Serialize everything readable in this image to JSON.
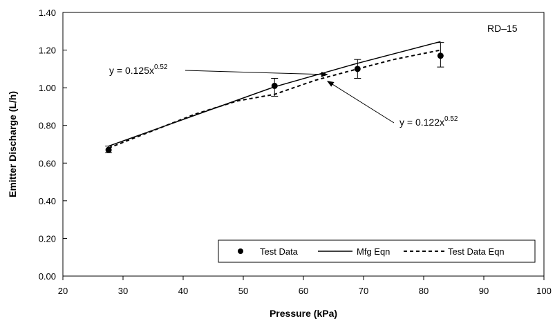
{
  "chart_data": {
    "type": "line",
    "title": "",
    "xlabel": "Pressure (kPa)",
    "ylabel": "Emitter Discharge (L/h)",
    "xlim": [
      20,
      100
    ],
    "ylim": [
      0.0,
      1.4
    ],
    "xticks": [
      20,
      30,
      40,
      50,
      60,
      70,
      80,
      90,
      100
    ],
    "yticks": [
      0.0,
      0.2,
      0.4,
      0.6,
      0.8,
      1.0,
      1.2,
      1.4
    ],
    "xtick_labels": [
      "20",
      "30",
      "40",
      "50",
      "60",
      "70",
      "80",
      "90",
      "100"
    ],
    "ytick_labels": [
      "0.00",
      "0.20",
      "0.40",
      "0.60",
      "0.80",
      "1.00",
      "1.20",
      "1.40"
    ],
    "grid": false,
    "label_box": "RD–15",
    "series": [
      {
        "name": "Test Data",
        "kind": "points",
        "x": [
          27.6,
          55.2,
          69.0,
          82.8
        ],
        "y": [
          0.67,
          1.01,
          1.1,
          1.17
        ],
        "err_low": [
          0.655,
          0.955,
          1.05,
          1.11
        ],
        "err_high": [
          0.69,
          1.05,
          1.15,
          1.24
        ]
      },
      {
        "name": "Mfg Eqn",
        "kind": "solid-line",
        "x": [
          27.6,
          55.2,
          69.0,
          82.8
        ],
        "y": [
          0.69,
          1.005,
          1.13,
          1.245
        ]
      },
      {
        "name": "Test Data Eqn",
        "kind": "dashed-line",
        "x": [
          27.6,
          34.0,
          42.0,
          49.0,
          55.2,
          62.0,
          69.0,
          75.0,
          82.8
        ],
        "y": [
          0.68,
          0.76,
          0.86,
          0.93,
          0.965,
          1.04,
          1.1,
          1.15,
          1.2
        ]
      }
    ],
    "annotations": [
      {
        "id": "mfg-eq",
        "text_base": "y = 0.125x",
        "text_exp": "0.52",
        "arrow_to": [
          64.0,
          1.07
        ]
      },
      {
        "id": "test-eq",
        "text_base": "y = 0.122x",
        "text_exp": "0.52",
        "arrow_to": [
          64.0,
          1.035
        ]
      }
    ],
    "legend": {
      "placement": "bottom-right"
    }
  }
}
